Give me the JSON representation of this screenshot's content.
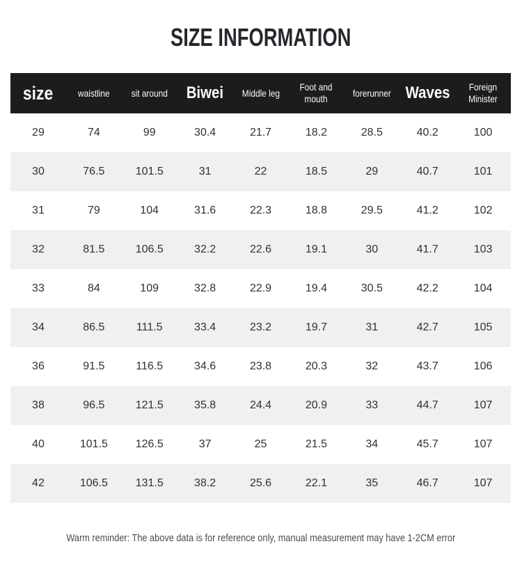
{
  "chart_data": {
    "type": "table",
    "title": "SIZE INFORMATION",
    "columns": [
      {
        "label": "size",
        "style": "xl"
      },
      {
        "label": "waistline",
        "style": "sm"
      },
      {
        "label": "sit around",
        "style": "sm"
      },
      {
        "label": "Biwei",
        "style": "lg"
      },
      {
        "label": "Middle leg",
        "style": "sm"
      },
      {
        "label": "Foot and mouth",
        "style": "sm"
      },
      {
        "label": "forerunner",
        "style": "sm"
      },
      {
        "label": "Waves",
        "style": "lg"
      },
      {
        "label": "Foreign Minister",
        "style": "sm"
      }
    ],
    "rows": [
      [
        "29",
        "74",
        "99",
        "30.4",
        "21.7",
        "18.2",
        "28.5",
        "40.2",
        "100"
      ],
      [
        "30",
        "76.5",
        "101.5",
        "31",
        "22",
        "18.5",
        "29",
        "40.7",
        "101"
      ],
      [
        "31",
        "79",
        "104",
        "31.6",
        "22.3",
        "18.8",
        "29.5",
        "41.2",
        "102"
      ],
      [
        "32",
        "81.5",
        "106.5",
        "32.2",
        "22.6",
        "19.1",
        "30",
        "41.7",
        "103"
      ],
      [
        "33",
        "84",
        "109",
        "32.8",
        "22.9",
        "19.4",
        "30.5",
        "42.2",
        "104"
      ],
      [
        "34",
        "86.5",
        "111.5",
        "33.4",
        "23.2",
        "19.7",
        "31",
        "42.7",
        "105"
      ],
      [
        "36",
        "91.5",
        "116.5",
        "34.6",
        "23.8",
        "20.3",
        "32",
        "43.7",
        "106"
      ],
      [
        "38",
        "96.5",
        "121.5",
        "35.8",
        "24.4",
        "20.9",
        "33",
        "44.7",
        "107"
      ],
      [
        "40",
        "101.5",
        "126.5",
        "37",
        "25",
        "21.5",
        "34",
        "45.7",
        "107"
      ],
      [
        "42",
        "106.5",
        "131.5",
        "38.2",
        "25.6",
        "22.1",
        "35",
        "46.7",
        "107"
      ]
    ],
    "footnote": "Warm reminder: The above data is for reference only, manual measurement may have 1-2CM error",
    "layout": {
      "row_striping": "alternate",
      "stripe_start_row_index": 1,
      "header_position": "top"
    }
  },
  "colors": {
    "header_bg": "#1c1c1e",
    "header_text": "#fafafa",
    "stripe": "#f0f0f0",
    "body_text": "#303030",
    "title_text": "#26262c",
    "footnote_text": "#4b4b4b"
  }
}
